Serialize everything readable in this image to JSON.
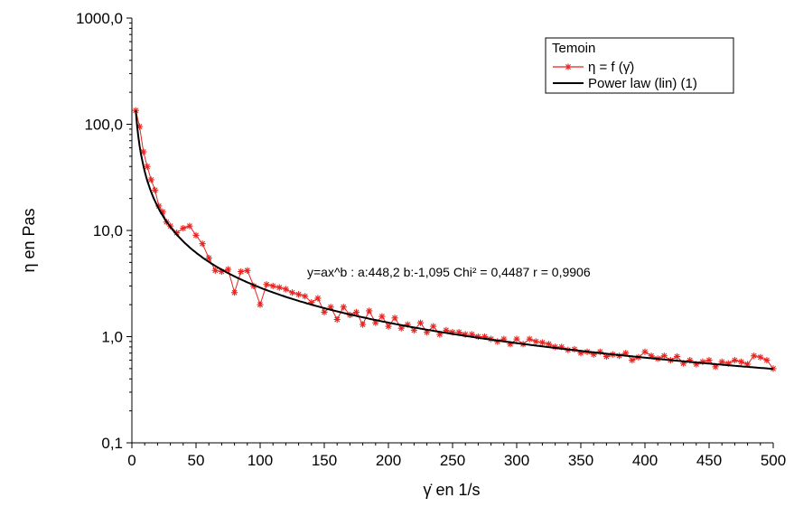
{
  "chart_data": {
    "type": "line",
    "title": "",
    "xlabel": "γ̇ en 1/s",
    "ylabel": "η en Pas",
    "xlim": [
      0,
      500
    ],
    "ylim": [
      0.1,
      1000
    ],
    "yscale": "log",
    "grid": false,
    "legend_position": "top-right",
    "x_ticks": [
      0,
      50,
      100,
      150,
      200,
      250,
      300,
      350,
      400,
      450,
      500
    ],
    "x_tick_labels": [
      "0",
      "50",
      "100",
      "150",
      "200",
      "250",
      "300",
      "350",
      "400",
      "450",
      "500"
    ],
    "y_ticks": [
      0.1,
      1,
      10,
      100,
      1000
    ],
    "y_tick_labels": [
      "0,1",
      "1,0",
      "10,0",
      "100,0",
      "1000,0"
    ],
    "legend_title": "Temoin",
    "annotation": "y=ax^b : a:448,2 b:-1,095 Chi² = 0,4487 r = 0,9906",
    "series": [
      {
        "name": "η = f (γ̇)",
        "color": "#e8231f",
        "marker": "asterisk",
        "x": [
          3,
          6,
          9,
          12,
          15,
          18,
          21,
          24,
          27,
          30,
          35,
          40,
          45,
          50,
          55,
          60,
          65,
          70,
          75,
          80,
          85,
          90,
          95,
          100,
          105,
          110,
          115,
          120,
          125,
          130,
          135,
          140,
          145,
          150,
          155,
          160,
          165,
          170,
          175,
          180,
          185,
          190,
          195,
          200,
          205,
          210,
          215,
          220,
          225,
          230,
          235,
          240,
          245,
          250,
          255,
          260,
          265,
          270,
          275,
          280,
          285,
          290,
          295,
          300,
          305,
          310,
          315,
          320,
          325,
          330,
          335,
          340,
          345,
          350,
          355,
          360,
          365,
          370,
          375,
          380,
          385,
          390,
          395,
          400,
          405,
          410,
          415,
          420,
          425,
          430,
          435,
          440,
          445,
          450,
          455,
          460,
          465,
          470,
          475,
          480,
          485,
          490,
          495,
          500
        ],
        "y": [
          135,
          95,
          55,
          40,
          30,
          24,
          17,
          15,
          12,
          11,
          9.5,
          10.5,
          11,
          9,
          7.5,
          5.5,
          4.2,
          4.1,
          4.3,
          2.6,
          4.1,
          4.2,
          3.0,
          2.0,
          3.1,
          3.0,
          2.9,
          2.8,
          2.6,
          2.5,
          2.4,
          2.1,
          2.3,
          1.7,
          1.9,
          1.45,
          1.9,
          1.6,
          1.7,
          1.3,
          1.75,
          1.35,
          1.55,
          1.25,
          1.5,
          1.2,
          1.3,
          1.15,
          1.35,
          1.1,
          1.25,
          1.05,
          1.15,
          1.1,
          1.1,
          1.05,
          1.05,
          1.0,
          1.0,
          0.95,
          0.9,
          0.95,
          0.85,
          0.95,
          0.85,
          0.95,
          0.9,
          0.88,
          0.85,
          0.8,
          0.8,
          0.75,
          0.76,
          0.7,
          0.72,
          0.68,
          0.72,
          0.65,
          0.68,
          0.66,
          0.7,
          0.6,
          0.64,
          0.72,
          0.66,
          0.62,
          0.66,
          0.6,
          0.65,
          0.56,
          0.6,
          0.55,
          0.58,
          0.6,
          0.52,
          0.58,
          0.56,
          0.6,
          0.58,
          0.55,
          0.66,
          0.64,
          0.6,
          0.5
        ]
      },
      {
        "name": "Power law (lin) (1)",
        "color": "#000000",
        "marker": "none",
        "model": {
          "a": 448.2,
          "b": -1.095
        },
        "x_range": [
          3,
          500
        ]
      }
    ]
  }
}
